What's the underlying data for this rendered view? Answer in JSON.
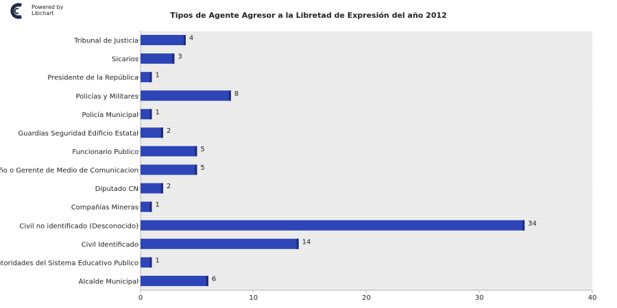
{
  "branding": {
    "line1": "Powered by",
    "line2": "Libchart"
  },
  "colors": {
    "bar": "#2e45b8",
    "bar_shadow": "#1c2a78",
    "plot_background": "#f2f2f2",
    "grid_line": "#dedede",
    "axis": "#b9b9b9"
  },
  "chart_data": {
    "type": "bar",
    "orientation": "horizontal",
    "title": "Tipos de Agente Agresor a la Libretad de Expresión del año 2012",
    "categories": [
      "Tribunal de Justicia",
      "Sicarios",
      "Presidente de la República",
      "Policías y Militares",
      "Policía Municipal",
      "Guardias Seguridad Edificio Estatal",
      "Funcionario Publico",
      "Dueño o Gerente de Medio de Comunicacion",
      "Diputado CN",
      "Compañías Mineras",
      "Civil no identificado (Desconocido)",
      "Civil Identificado",
      "Autoridades del Sistema Educativo Publico",
      "Alcalde Municipal"
    ],
    "values": [
      4,
      3,
      1,
      8,
      1,
      2,
      5,
      5,
      2,
      1,
      34,
      14,
      1,
      6
    ],
    "xlim": [
      0,
      40
    ],
    "xticks": [
      0,
      10,
      20,
      30,
      40
    ],
    "grid": true,
    "legend": false
  }
}
